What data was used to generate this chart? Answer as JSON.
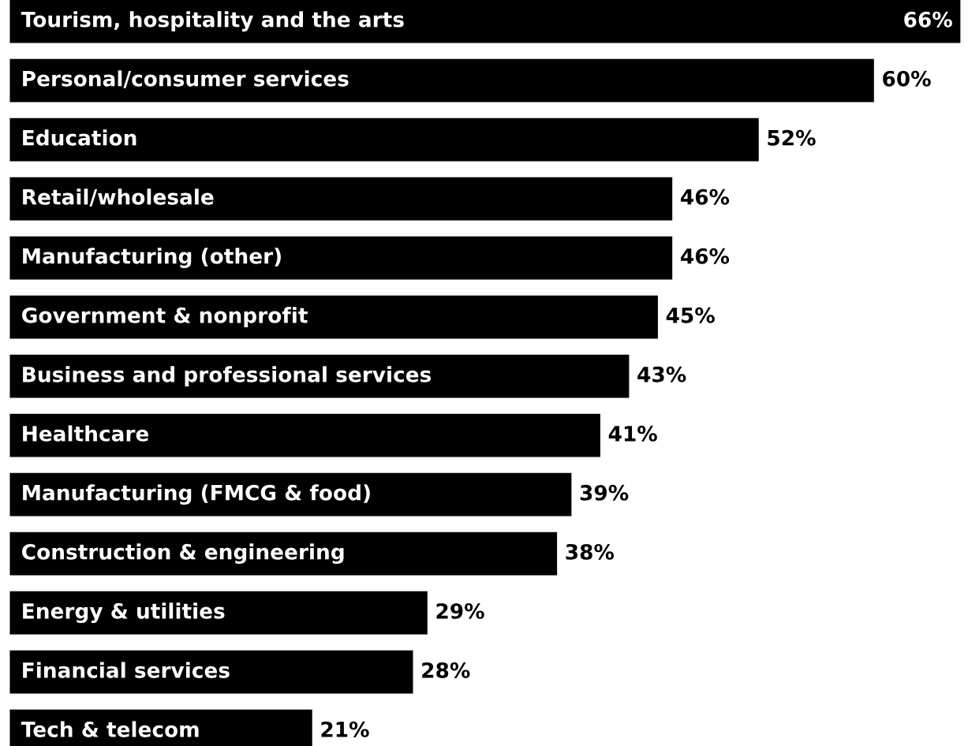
{
  "chart_data": {
    "type": "bar",
    "orientation": "horizontal",
    "categories": [
      "Tourism, hospitality and the arts",
      "Personal/consumer services",
      "Education",
      "Retail/wholesale",
      "Manufacturing (other)",
      "Government & nonprofit",
      "Business and professional services",
      "Healthcare",
      "Manufacturing (FMCG & food)",
      "Construction & engineering",
      "Energy & utilities",
      "Financial services",
      "Tech & telecom"
    ],
    "values": [
      66,
      60,
      52,
      46,
      46,
      45,
      43,
      41,
      39,
      38,
      29,
      28,
      21
    ],
    "value_labels": [
      "66%",
      "60%",
      "52%",
      "46%",
      "46%",
      "45%",
      "43%",
      "41%",
      "39%",
      "38%",
      "29%",
      "28%",
      "21%"
    ],
    "color": "#000000"
  }
}
